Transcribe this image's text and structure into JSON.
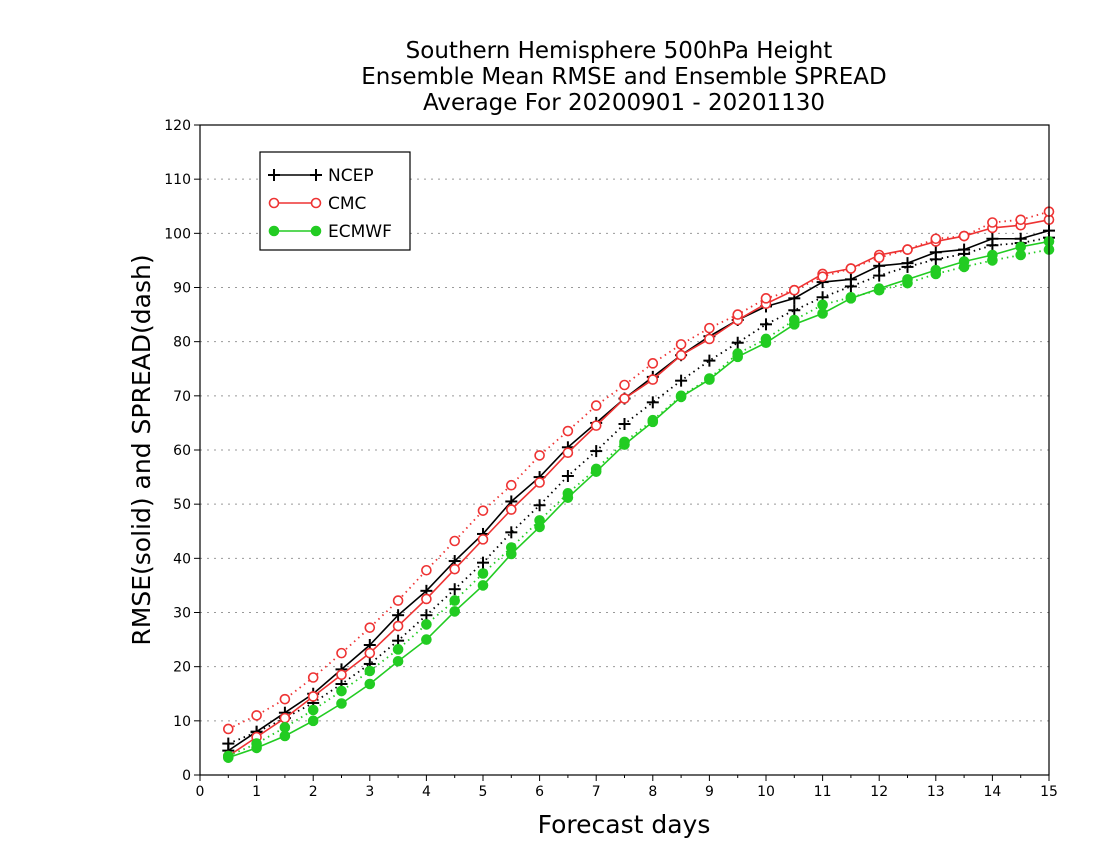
{
  "chart_data": {
    "type": "line",
    "title_lines": [
      "Southern Hemisphere 500hPa Height",
      "Ensemble Mean RMSE and Ensemble SPREAD",
      "Average For 20200901 - 20201130"
    ],
    "xlabel": "Forecast days",
    "ylabel": "RMSE(solid) and SPREAD(dash)",
    "xlim": [
      0,
      15
    ],
    "ylim": [
      0,
      120
    ],
    "x_ticks": [
      "0",
      "1",
      "2",
      "3",
      "4",
      "5",
      "6",
      "7",
      "8",
      "9",
      "10",
      "11",
      "12",
      "13",
      "14",
      "15"
    ],
    "y_ticks": [
      "0",
      "10",
      "20",
      "30",
      "40",
      "50",
      "60",
      "70",
      "80",
      "90",
      "100",
      "110",
      "120"
    ],
    "grid": "horizontal dotted",
    "legend_position": "top-left",
    "legend": [
      "NCEP",
      "CMC",
      "ECMWF"
    ],
    "x": [
      0.5,
      1,
      1.5,
      2,
      2.5,
      3,
      3.5,
      4,
      4.5,
      5,
      5.5,
      6,
      6.5,
      7,
      7.5,
      8,
      8.5,
      9,
      9.5,
      10,
      10.5,
      11,
      11.5,
      12,
      12.5,
      13,
      13.5,
      14,
      14.5,
      15
    ],
    "series": [
      {
        "name": "NCEP",
        "metric": "RMSE",
        "style": "solid",
        "marker": "plus",
        "color": "#000000",
        "values": [
          4.5,
          8.0,
          11.5,
          15.0,
          19.5,
          24.0,
          29.5,
          34.0,
          39.5,
          44.5,
          50.5,
          55.0,
          60.5,
          65.0,
          69.5,
          73.5,
          77.5,
          81.0,
          84.0,
          86.5,
          88.0,
          91.0,
          91.5,
          94.0,
          94.5,
          96.5,
          97.0,
          99.0,
          99.0,
          100.5
        ]
      },
      {
        "name": "NCEP",
        "metric": "SPREAD",
        "style": "dotted",
        "marker": "plus",
        "color": "#000000",
        "values": [
          5.8,
          7.9,
          10.5,
          13.3,
          16.8,
          20.5,
          24.8,
          29.5,
          34.3,
          39.2,
          44.8,
          49.8,
          55.2,
          59.8,
          64.8,
          68.8,
          72.8,
          76.5,
          79.8,
          83.2,
          85.8,
          88.2,
          90.2,
          92.2,
          93.8,
          95.2,
          96.2,
          97.8,
          98.2,
          99.2
        ]
      },
      {
        "name": "CMC",
        "metric": "RMSE",
        "style": "solid",
        "marker": "open-circle",
        "color": "#ee3333",
        "values": [
          3.5,
          7.0,
          10.5,
          14.5,
          18.5,
          22.5,
          27.5,
          32.5,
          38.0,
          43.5,
          49.0,
          54.0,
          59.5,
          64.5,
          69.5,
          73.0,
          77.5,
          80.5,
          84.0,
          87.0,
          89.5,
          92.5,
          93.5,
          96.0,
          97.0,
          98.5,
          99.5,
          101.0,
          101.5,
          102.5
        ]
      },
      {
        "name": "CMC",
        "metric": "SPREAD",
        "style": "dotted",
        "marker": "open-circle",
        "color": "#ee3333",
        "values": [
          8.5,
          11.0,
          14.0,
          18.0,
          22.5,
          27.2,
          32.2,
          37.8,
          43.2,
          48.8,
          53.5,
          59.0,
          63.5,
          68.2,
          72.0,
          76.0,
          79.5,
          82.5,
          85.0,
          88.0,
          89.5,
          92.0,
          93.5,
          95.5,
          97.0,
          99.0,
          99.5,
          102.0,
          102.5,
          104.0
        ]
      },
      {
        "name": "ECMWF",
        "metric": "RMSE",
        "style": "solid",
        "marker": "filled-circle",
        "color": "#22cc22",
        "values": [
          3.2,
          5.0,
          7.2,
          10.0,
          13.2,
          16.8,
          21.0,
          25.0,
          30.2,
          35.0,
          40.8,
          45.8,
          51.2,
          56.0,
          61.0,
          65.2,
          69.8,
          73.0,
          77.2,
          79.8,
          83.2,
          85.2,
          88.0,
          89.8,
          91.5,
          93.2,
          94.8,
          96.0,
          97.5,
          98.5
        ]
      },
      {
        "name": "ECMWF",
        "metric": "SPREAD",
        "style": "dotted",
        "marker": "filled-circle",
        "color": "#22cc22",
        "values": [
          3.5,
          5.8,
          8.8,
          12.0,
          15.5,
          19.2,
          23.2,
          27.8,
          32.2,
          37.2,
          42.0,
          47.0,
          52.0,
          56.5,
          61.5,
          65.5,
          70.0,
          73.2,
          77.8,
          80.5,
          84.0,
          86.8,
          88.2,
          89.5,
          90.8,
          92.5,
          93.8,
          95.0,
          96.0,
          97.0
        ]
      }
    ]
  }
}
